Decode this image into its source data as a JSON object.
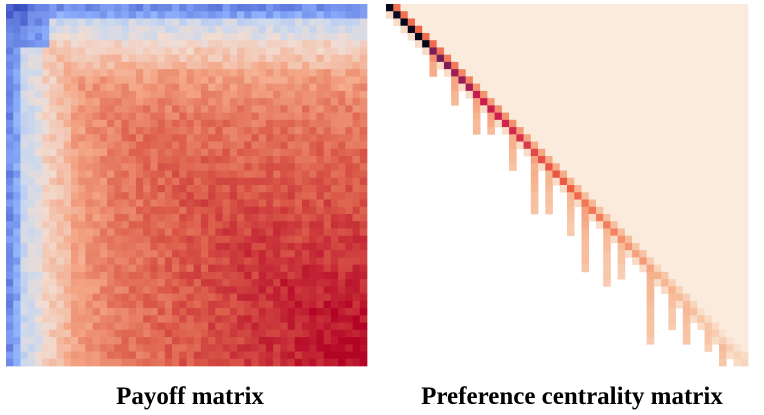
{
  "chart_data": [
    {
      "type": "heatmap",
      "title": "Payoff matrix",
      "rows": 50,
      "cols": 50,
      "colormap": "coolwarm",
      "colors": {
        "low": "#3b4cc0",
        "mid": "#f2dcd1",
        "high": "#b40426"
      },
      "value_range": [
        0,
        1
      ],
      "pattern": "low values along the first rows and first columns (top-left corner darkest blue); values rise toward the bottom-right, reaching deep red",
      "grid": false,
      "axes_visible": false,
      "legend": "none"
    },
    {
      "type": "heatmap",
      "title": "Preference centrality matrix",
      "rows": 50,
      "cols": 50,
      "colormap": "rocket_r",
      "colors": {
        "background": "#ffffff",
        "low": "#faebdd",
        "mid": "#f06043",
        "high": "#cb1b4f",
        "max": "#03051a"
      },
      "value_range": [
        0,
        1
      ],
      "pattern": "upper-triangular; lower-left triangle empty (white); darkest cells on the main diagonal at the top-left, fading to pale toward the bottom-right; vertical streaks of higher values extending below the diagonal",
      "grid": false,
      "axes_visible": false,
      "legend": "none"
    }
  ]
}
